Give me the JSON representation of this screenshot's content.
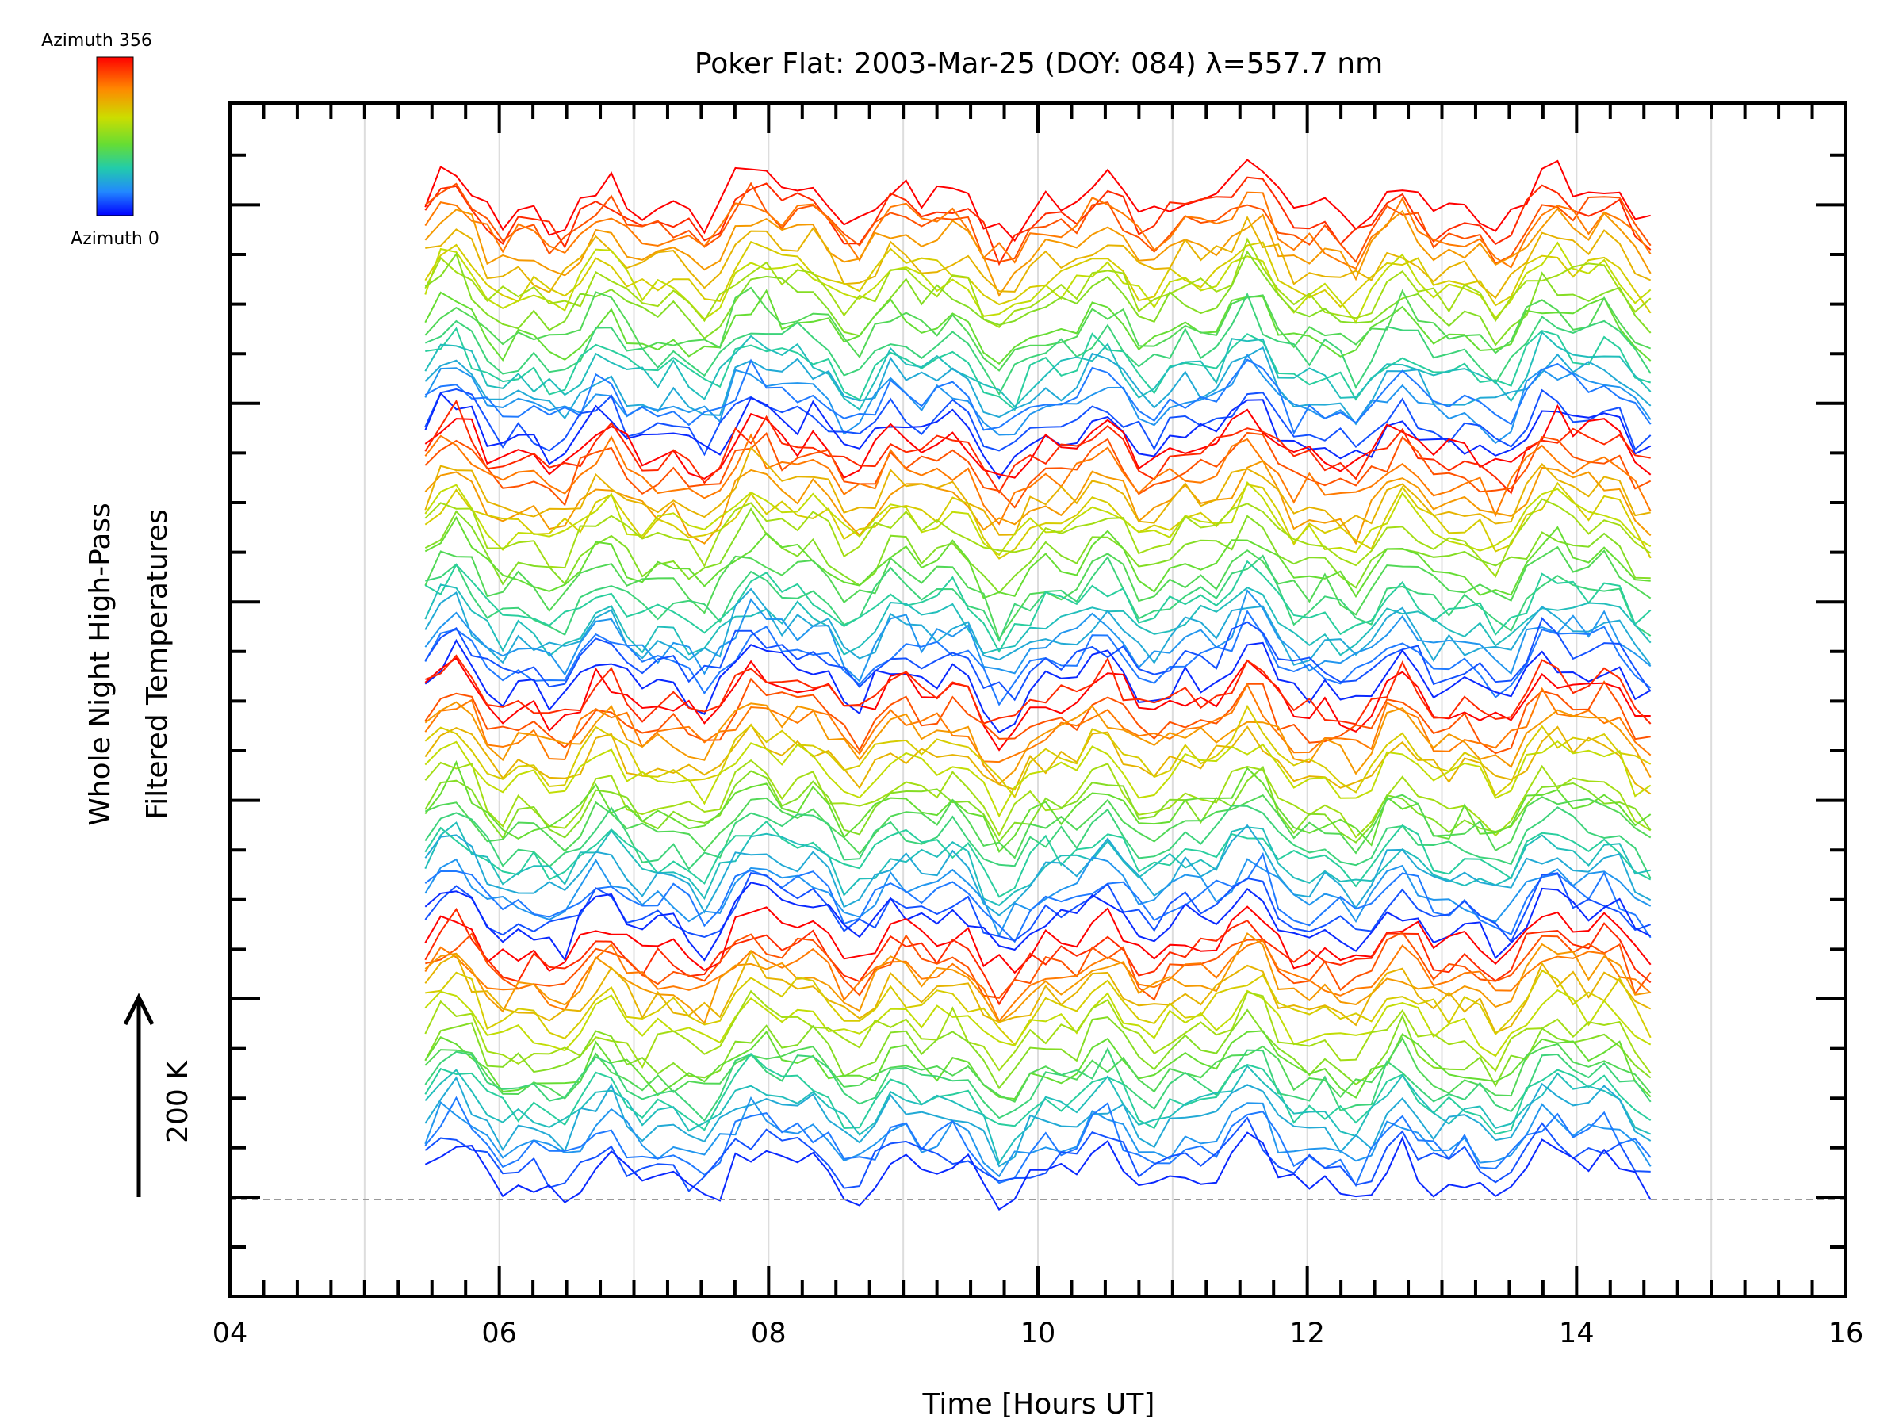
{
  "chart_data": {
    "type": "line",
    "title": "Poker Flat: 2003-Mar-25 (DOY: 084) λ=557.7 nm",
    "xlabel": "Time [Hours UT]",
    "ylabel_line1": "Whole Night High-Pass",
    "ylabel_line2": "Filtered Temperatures",
    "scale_label": "200 K",
    "colorbar": {
      "top_label": "Azimuth 356",
      "bottom_label": "Azimuth 0",
      "colors": [
        "#ff0000",
        "#ff8800",
        "#ccdd00",
        "#66dd33",
        "#22ccaa",
        "#2288ff",
        "#0000ff"
      ]
    },
    "xlim": [
      4,
      16
    ],
    "x_ticks": [
      "04",
      "06",
      "08",
      "10",
      "12",
      "14",
      "16"
    ],
    "grid": true,
    "time_range": [
      5.45,
      14.55
    ],
    "series_count": 80
  }
}
